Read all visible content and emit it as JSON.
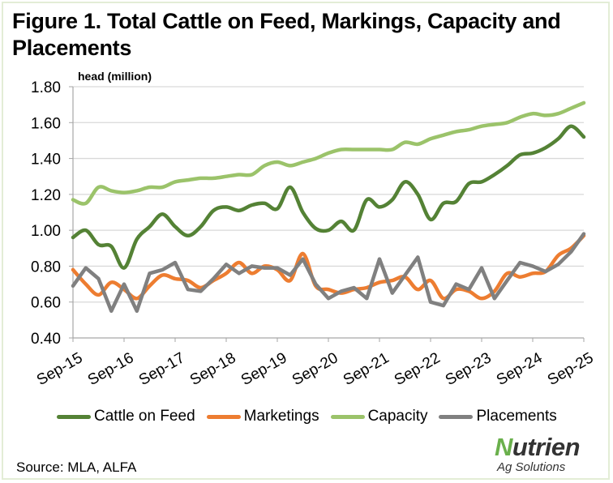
{
  "chart_data": {
    "type": "line",
    "title": "Figure 1. Total Cattle on Feed, Markings, Capacity and Placements",
    "ylabel": "head (million)",
    "xlabel": "",
    "ylim": [
      0.4,
      1.8
    ],
    "yticks": [
      "0.40",
      "0.60",
      "0.80",
      "1.00",
      "1.20",
      "1.40",
      "1.60",
      "1.80"
    ],
    "yticks_values": [
      0.4,
      0.6,
      0.8,
      1.0,
      1.2,
      1.4,
      1.6,
      1.8
    ],
    "xtick_labels": [
      "Sep-15",
      "Sep-16",
      "Sep-17",
      "Sep-18",
      "Sep-19",
      "Sep-20",
      "Sep-21",
      "Sep-22",
      "Sep-23",
      "Sep-24",
      "Sep-25"
    ],
    "x_frequency": "quarterly",
    "grid": "horizontal",
    "legend_position": "bottom",
    "series": [
      {
        "name": "Cattle on Feed",
        "color": "#548235",
        "values": [
          0.96,
          1.0,
          0.92,
          0.91,
          0.79,
          0.95,
          1.02,
          1.09,
          1.02,
          0.97,
          1.02,
          1.11,
          1.13,
          1.11,
          1.14,
          1.15,
          1.12,
          1.24,
          1.1,
          1.01,
          1.0,
          1.05,
          1.0,
          1.17,
          1.13,
          1.17,
          1.27,
          1.2,
          1.06,
          1.15,
          1.16,
          1.26,
          1.27,
          1.31,
          1.36,
          1.42,
          1.43,
          1.46,
          1.51,
          1.58,
          1.52
        ]
      },
      {
        "name": "Marketings",
        "color": "#ed7d31",
        "values": [
          0.78,
          0.7,
          0.64,
          0.71,
          0.67,
          0.62,
          0.69,
          0.75,
          0.73,
          0.72,
          0.68,
          0.72,
          0.76,
          0.82,
          0.76,
          0.8,
          0.78,
          0.72,
          0.87,
          0.69,
          0.67,
          0.65,
          0.67,
          0.68,
          0.71,
          0.72,
          0.74,
          0.67,
          0.72,
          0.62,
          0.67,
          0.66,
          0.62,
          0.66,
          0.76,
          0.74,
          0.76,
          0.77,
          0.86,
          0.9,
          0.97
        ]
      },
      {
        "name": "Capacity",
        "color": "#9bc36a",
        "values": [
          1.17,
          1.15,
          1.24,
          1.22,
          1.21,
          1.22,
          1.24,
          1.24,
          1.27,
          1.28,
          1.29,
          1.29,
          1.3,
          1.31,
          1.31,
          1.36,
          1.38,
          1.36,
          1.38,
          1.4,
          1.43,
          1.45,
          1.45,
          1.45,
          1.45,
          1.45,
          1.49,
          1.48,
          1.51,
          1.53,
          1.55,
          1.56,
          1.58,
          1.59,
          1.6,
          1.63,
          1.65,
          1.64,
          1.65,
          1.68,
          1.71
        ]
      },
      {
        "name": "Placements",
        "color": "#808080",
        "values": [
          0.69,
          0.79,
          0.73,
          0.55,
          0.7,
          0.55,
          0.76,
          0.78,
          0.82,
          0.67,
          0.66,
          0.73,
          0.81,
          0.76,
          0.8,
          0.79,
          0.79,
          0.75,
          0.84,
          0.7,
          0.62,
          0.66,
          0.68,
          0.62,
          0.84,
          0.65,
          0.75,
          0.85,
          0.6,
          0.58,
          0.7,
          0.67,
          0.79,
          0.62,
          0.72,
          0.82,
          0.8,
          0.77,
          0.81,
          0.88,
          0.98
        ]
      }
    ]
  },
  "source": "Source: MLA, ALFA",
  "logo": {
    "main": "Nutrien",
    "sub": "Ag Solutions"
  }
}
